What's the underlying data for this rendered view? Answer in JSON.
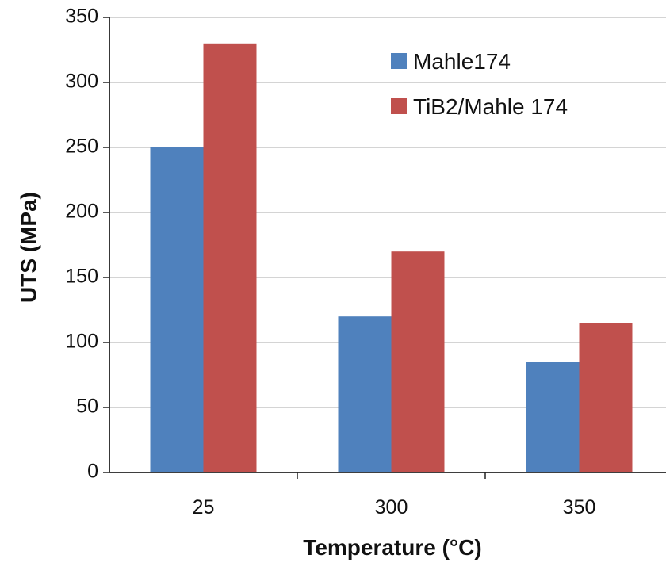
{
  "chart_data": {
    "type": "bar",
    "title": "",
    "xlabel": "Temperature (°C)",
    "ylabel": "UTS (MPa)",
    "categories": [
      "25",
      "300",
      "350"
    ],
    "series": [
      {
        "name": "Mahle174",
        "values": [
          250,
          120,
          85
        ],
        "color": "#4f81bd"
      },
      {
        "name": "TiB2/Mahle 174",
        "values": [
          330,
          170,
          115
        ],
        "color": "#c0504d"
      }
    ],
    "ylim": [
      0,
      350
    ],
    "yticks": [
      "0",
      "50",
      "100",
      "150",
      "200",
      "250",
      "300",
      "350"
    ],
    "grid": true,
    "legend_position": "top-right"
  }
}
